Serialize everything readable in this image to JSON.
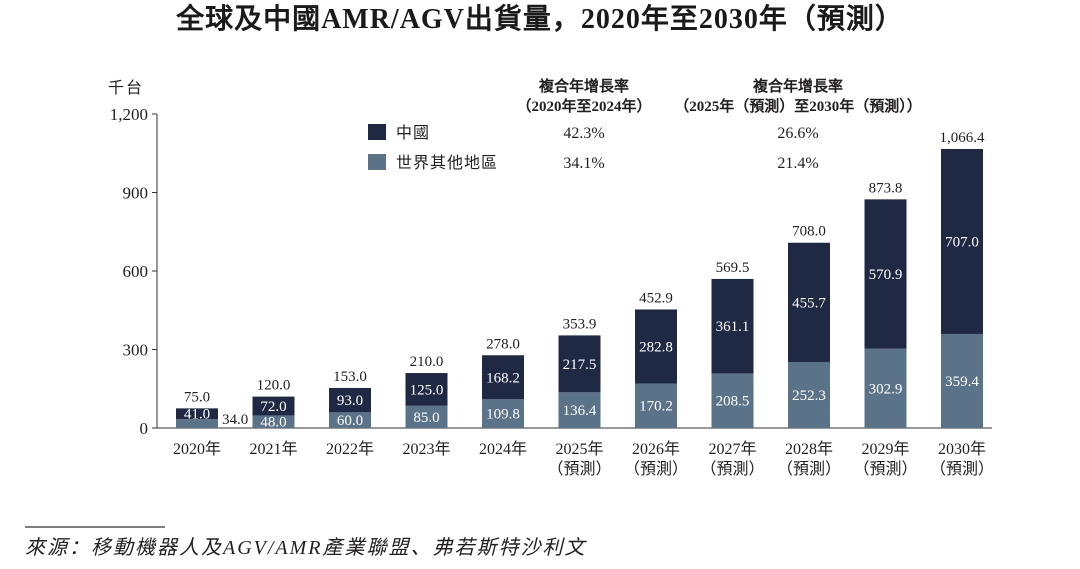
{
  "chart_data": {
    "type": "bar",
    "stacked": true,
    "title": "全球及中國AMR/AGV出貨量，2020年至2030年（預測）",
    "ylabel": "千台",
    "ylim": [
      0,
      1200
    ],
    "yticks": [
      0,
      300,
      600,
      900,
      1200
    ],
    "grid": false,
    "legend_position": "top-left",
    "categories": [
      "2020年",
      "2021年",
      "2022年",
      "2023年",
      "2024年",
      "2025年",
      "2026年",
      "2027年",
      "2028年",
      "2029年",
      "2030年"
    ],
    "category_notes": [
      "",
      "",
      "",
      "",
      "",
      "（預測）",
      "（預測）",
      "（預測）",
      "（預測）",
      "（預測）",
      "（預測）"
    ],
    "series": [
      {
        "name": "中國",
        "color": "#1f2944",
        "values": [
          41.0,
          72.0,
          93.0,
          125.0,
          168.2,
          217.5,
          282.8,
          361.1,
          455.7,
          570.9,
          707.0
        ]
      },
      {
        "name": "世界其他地區",
        "color": "#5b7389",
        "values": [
          34.0,
          48.0,
          60.0,
          85.0,
          109.8,
          136.4,
          170.2,
          208.5,
          252.3,
          302.9,
          359.4
        ]
      }
    ],
    "totals": [
      75.0,
      120.0,
      153.0,
      210.0,
      278.0,
      353.9,
      452.9,
      569.5,
      708.0,
      873.8,
      1066.4
    ],
    "cagr_table": {
      "columns": [
        {
          "heading": "複合年增長率",
          "period": "（2020年至2024年）",
          "values": [
            "42.3%",
            "34.1%"
          ]
        },
        {
          "heading": "複合年增長率",
          "period": "（2025年（預測）至2030年（預測））",
          "values": [
            "26.6%",
            "21.4%"
          ]
        }
      ]
    }
  },
  "source": "來源：移動機器人及AGV/AMR產業聯盟、弗若斯特沙利文"
}
